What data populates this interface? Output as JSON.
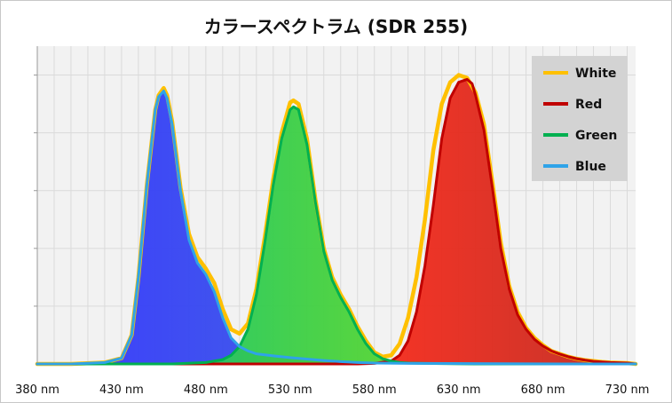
{
  "chart_data": {
    "type": "area",
    "title": "カラースペクトラム (SDR 255)",
    "xlabel": "",
    "ylabel": "",
    "unit": "nm",
    "xlim": [
      380,
      735
    ],
    "ylim": [
      0,
      1.1
    ],
    "grid": true,
    "legend_position": "top-right",
    "x_ticks": [
      "380 nm",
      "430 nm",
      "480 nm",
      "530 nm",
      "580 nm",
      "630 nm",
      "680 nm",
      "730 nm"
    ],
    "x_tick_values": [
      380,
      430,
      480,
      530,
      580,
      630,
      680,
      730
    ],
    "series": [
      {
        "name": "White",
        "color": "#ffc000",
        "x": [
          380,
          400,
          420,
          430,
          436,
          440,
          445,
          450,
          452,
          455,
          457,
          460,
          465,
          470,
          475,
          480,
          485,
          490,
          495,
          500,
          505,
          510,
          515,
          520,
          525,
          530,
          532,
          535,
          540,
          545,
          550,
          555,
          560,
          565,
          570,
          575,
          580,
          585,
          590,
          595,
          600,
          605,
          610,
          615,
          620,
          625,
          630,
          635,
          638,
          640,
          645,
          650,
          655,
          660,
          665,
          670,
          675,
          680,
          685,
          690,
          695,
          700,
          705,
          710,
          715,
          720,
          730,
          735
        ],
        "values": [
          0.0,
          0.0,
          0.005,
          0.02,
          0.1,
          0.3,
          0.62,
          0.88,
          0.93,
          0.955,
          0.93,
          0.84,
          0.61,
          0.45,
          0.37,
          0.33,
          0.28,
          0.19,
          0.12,
          0.105,
          0.14,
          0.26,
          0.44,
          0.64,
          0.8,
          0.905,
          0.912,
          0.9,
          0.78,
          0.57,
          0.4,
          0.3,
          0.24,
          0.19,
          0.13,
          0.08,
          0.04,
          0.025,
          0.03,
          0.07,
          0.16,
          0.3,
          0.5,
          0.74,
          0.9,
          0.975,
          1.0,
          0.99,
          0.96,
          0.94,
          0.83,
          0.63,
          0.42,
          0.27,
          0.18,
          0.125,
          0.09,
          0.065,
          0.045,
          0.035,
          0.025,
          0.018,
          0.013,
          0.01,
          0.007,
          0.005,
          0.003,
          0.0
        ]
      },
      {
        "name": "Red",
        "color": "#c00000",
        "x": [
          380,
          570,
          580,
          590,
          595,
          600,
          605,
          610,
          615,
          620,
          625,
          630,
          635,
          638,
          640,
          645,
          650,
          655,
          660,
          665,
          670,
          675,
          680,
          685,
          690,
          695,
          700,
          705,
          710,
          715,
          720,
          730,
          735
        ],
        "values": [
          0.0,
          0.0,
          0.002,
          0.01,
          0.03,
          0.08,
          0.18,
          0.34,
          0.55,
          0.78,
          0.92,
          0.975,
          0.985,
          0.97,
          0.93,
          0.81,
          0.61,
          0.4,
          0.26,
          0.17,
          0.12,
          0.085,
          0.062,
          0.045,
          0.034,
          0.025,
          0.018,
          0.013,
          0.009,
          0.007,
          0.005,
          0.003,
          0.0
        ]
      },
      {
        "name": "Green",
        "color": "#00b050",
        "x": [
          380,
          460,
          480,
          490,
          495,
          500,
          505,
          510,
          515,
          520,
          525,
          530,
          532,
          535,
          540,
          545,
          550,
          555,
          560,
          565,
          570,
          575,
          580,
          585,
          590,
          595,
          600,
          610,
          620,
          640,
          735
        ],
        "values": [
          0.0,
          0.0,
          0.005,
          0.015,
          0.03,
          0.06,
          0.12,
          0.24,
          0.42,
          0.62,
          0.78,
          0.88,
          0.89,
          0.88,
          0.76,
          0.56,
          0.39,
          0.29,
          0.23,
          0.18,
          0.12,
          0.07,
          0.035,
          0.018,
          0.01,
          0.005,
          0.003,
          0.002,
          0.001,
          0.0,
          0.0
        ]
      },
      {
        "name": "Blue",
        "color": "#2fa3e8",
        "x": [
          380,
          400,
          420,
          430,
          436,
          440,
          445,
          450,
          452,
          455,
          457,
          460,
          465,
          470,
          475,
          480,
          485,
          490,
          495,
          500,
          505,
          510,
          520,
          530,
          540,
          550,
          560,
          570,
          580,
          600,
          640,
          700,
          735
        ],
        "values": [
          0.0,
          0.0,
          0.005,
          0.02,
          0.1,
          0.3,
          0.62,
          0.88,
          0.925,
          0.945,
          0.92,
          0.83,
          0.6,
          0.43,
          0.35,
          0.31,
          0.25,
          0.16,
          0.09,
          0.06,
          0.045,
          0.035,
          0.028,
          0.022,
          0.017,
          0.012,
          0.008,
          0.005,
          0.003,
          0.002,
          0.001,
          0.0,
          0.0
        ]
      }
    ]
  }
}
